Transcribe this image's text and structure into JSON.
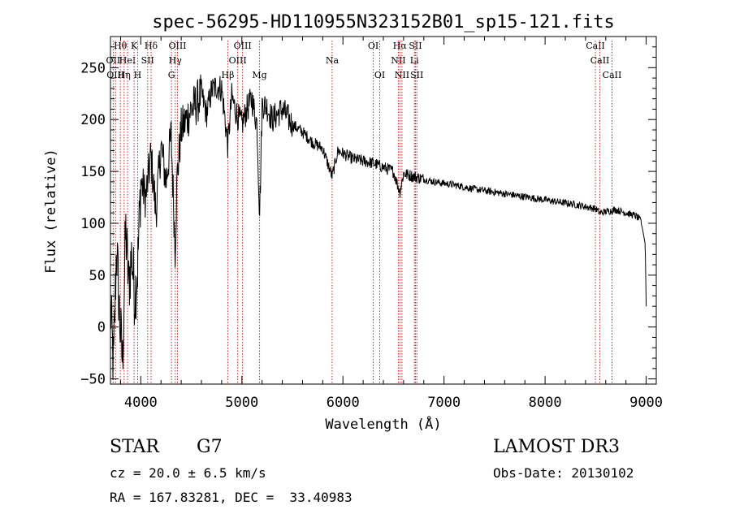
{
  "chart_data": {
    "type": "line",
    "title": "spec-56295-HD110955N323152B01_sp15-121.fits",
    "xlabel": "Wavelength (Å)",
    "ylabel": "Flux (relative)",
    "xlim": [
      3700,
      9100
    ],
    "ylim": [
      -55,
      280
    ],
    "xticks": [
      4000,
      5000,
      6000,
      7000,
      8000,
      9000
    ],
    "yticks": [
      -50,
      0,
      50,
      100,
      150,
      200,
      250
    ],
    "grid": false,
    "series": [
      {
        "name": "spectrum",
        "x": [
          3700,
          3730,
          3760,
          3790,
          3820,
          3850,
          3880,
          3910,
          3940,
          3970,
          4000,
          4050,
          4100,
          4150,
          4200,
          4250,
          4300,
          4340,
          4360,
          4400,
          4450,
          4500,
          4550,
          4600,
          4650,
          4700,
          4750,
          4800,
          4861,
          4900,
          4950,
          5000,
          5050,
          5100,
          5150,
          5175,
          5184,
          5200,
          5250,
          5300,
          5400,
          5500,
          5600,
          5700,
          5800,
          5893,
          5950,
          6100,
          6300,
          6500,
          6563,
          6600,
          6700,
          6900,
          7100,
          7300,
          7500,
          7700,
          7900,
          8100,
          8300,
          8500,
          8542,
          8700,
          8900,
          8950,
          8990,
          9000
        ],
        "y": [
          20,
          -40,
          80,
          10,
          -35,
          95,
          40,
          70,
          30,
          60,
          140,
          125,
          165,
          110,
          175,
          140,
          185,
          75,
          145,
          190,
          200,
          210,
          215,
          225,
          205,
          228,
          232,
          230,
          175,
          222,
          205,
          195,
          210,
          220,
          195,
          110,
          140,
          215,
          212,
          200,
          210,
          195,
          188,
          178,
          172,
          145,
          170,
          162,
          158,
          150,
          130,
          148,
          145,
          140,
          137,
          133,
          130,
          127,
          124,
          121,
          118,
          114,
          110,
          113,
          107,
          102,
          80,
          20
        ]
      }
    ],
    "lines": [
      {
        "wavelength": 3727,
        "label": "OII",
        "row": 2
      },
      {
        "wavelength": 3750,
        "label": "OIII",
        "row": 3
      },
      {
        "wavelength": 3798,
        "label": "Hθ",
        "row": 1
      },
      {
        "wavelength": 3835,
        "label": "Hη",
        "row": 3
      },
      {
        "wavelength": 3869,
        "label": "HeI",
        "row": 2
      },
      {
        "wavelength": 3934,
        "label": "K",
        "row": 1
      },
      {
        "wavelength": 3969,
        "label": "H",
        "row": 3
      },
      {
        "wavelength": 4068,
        "label": "SII",
        "row": 2
      },
      {
        "wavelength": 4102,
        "label": "Hδ",
        "row": 1
      },
      {
        "wavelength": 4304,
        "label": "G",
        "row": 3
      },
      {
        "wavelength": 4341,
        "label": "Hγ",
        "row": 2
      },
      {
        "wavelength": 4363,
        "label": "OIII",
        "row": 1
      },
      {
        "wavelength": 4861,
        "label": "Hβ",
        "row": 3
      },
      {
        "wavelength": 4959,
        "label": "OIII",
        "row": 2
      },
      {
        "wavelength": 5007,
        "label": "OIII",
        "row": 1
      },
      {
        "wavelength": 5175,
        "label": "Mg",
        "row": 3
      },
      {
        "wavelength": 5893,
        "label": "Na",
        "row": 2
      },
      {
        "wavelength": 6300,
        "label": "OI",
        "row": 1
      },
      {
        "wavelength": 6364,
        "label": "OI",
        "row": 3
      },
      {
        "wavelength": 6548,
        "label": "NII",
        "row": 2
      },
      {
        "wavelength": 6563,
        "label": "Hα",
        "row": 1
      },
      {
        "wavelength": 6584,
        "label": "NII",
        "row": 3
      },
      {
        "wavelength": 6707,
        "label": "Li",
        "row": 2
      },
      {
        "wavelength": 6717,
        "label": "SII",
        "row": 1
      },
      {
        "wavelength": 6731,
        "label": "SII",
        "row": 3
      },
      {
        "wavelength": 8498,
        "label": "CaII",
        "row": 1
      },
      {
        "wavelength": 8542,
        "label": "CaII",
        "row": 2
      },
      {
        "wavelength": 8662,
        "label": "CaII",
        "row": 3
      }
    ]
  },
  "info": {
    "class_label": "STAR",
    "subclass": "G7",
    "survey": "LAMOST DR3",
    "cz": "cz = 20.0 ± 6.5 km/s",
    "obs_date": "Obs-Date: 20130102",
    "coords": "RA = 167.83281, DEC =  33.40983"
  }
}
